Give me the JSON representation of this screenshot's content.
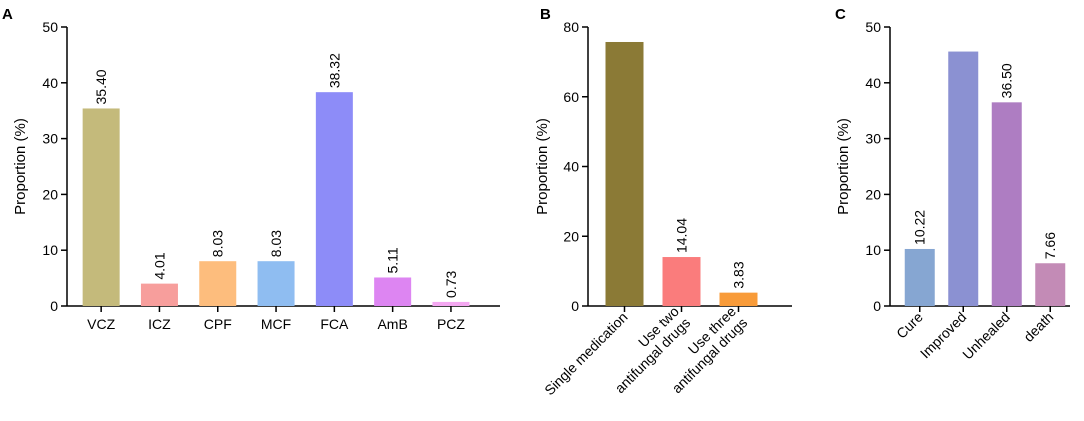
{
  "chart_data": [
    {
      "panel": "A",
      "type": "bar",
      "title": "",
      "xlabel": "",
      "ylabel": "Proportion (%)",
      "ylim": [
        0,
        50
      ],
      "yticks": [
        0,
        10,
        20,
        30,
        40,
        50
      ],
      "categories": [
        "VCZ",
        "ICZ",
        "CPF",
        "MCF",
        "FCA",
        "AmB",
        "PCZ"
      ],
      "values": [
        35.4,
        4.01,
        8.03,
        8.03,
        38.32,
        5.11,
        0.73
      ],
      "value_labels": [
        "35.40",
        "4.01",
        "8.03",
        "8.03",
        "38.32",
        "5.11",
        "0.73"
      ],
      "colors": [
        "#c4ba7b",
        "#f79e9c",
        "#fdbd7d",
        "#8fbdf1",
        "#8d8cf8",
        "#dd85f2",
        "#f4a7f1"
      ]
    },
    {
      "panel": "B",
      "type": "bar",
      "title": "",
      "xlabel": "",
      "ylabel": "Proportion (%)",
      "ylim": [
        0,
        80
      ],
      "yticks": [
        0,
        20,
        40,
        60,
        80
      ],
      "categories": [
        [
          "Single medication"
        ],
        [
          "Use two",
          "antifungal drugs"
        ],
        [
          "Use three",
          "antifungal drugs"
        ]
      ],
      "values": [
        75.7,
        14.04,
        3.83
      ],
      "value_labels": [
        "",
        "14.04",
        "3.83"
      ],
      "colors": [
        "#8b7a36",
        "#fa7c7c",
        "#f89b39"
      ]
    },
    {
      "panel": "C",
      "type": "bar",
      "title": "",
      "xlabel": "",
      "ylabel": "Proportion (%)",
      "ylim": [
        0,
        50
      ],
      "yticks": [
        0,
        10,
        20,
        30,
        40,
        50
      ],
      "categories": [
        "Cure",
        "Improved",
        "Unhealed",
        "death"
      ],
      "values": [
        10.22,
        45.6,
        36.5,
        7.66
      ],
      "value_labels": [
        "10.22",
        "",
        "36.50",
        "7.66"
      ],
      "colors": [
        "#86a6d2",
        "#8b91d2",
        "#ae7dc2",
        "#c38bb6"
      ]
    }
  ]
}
